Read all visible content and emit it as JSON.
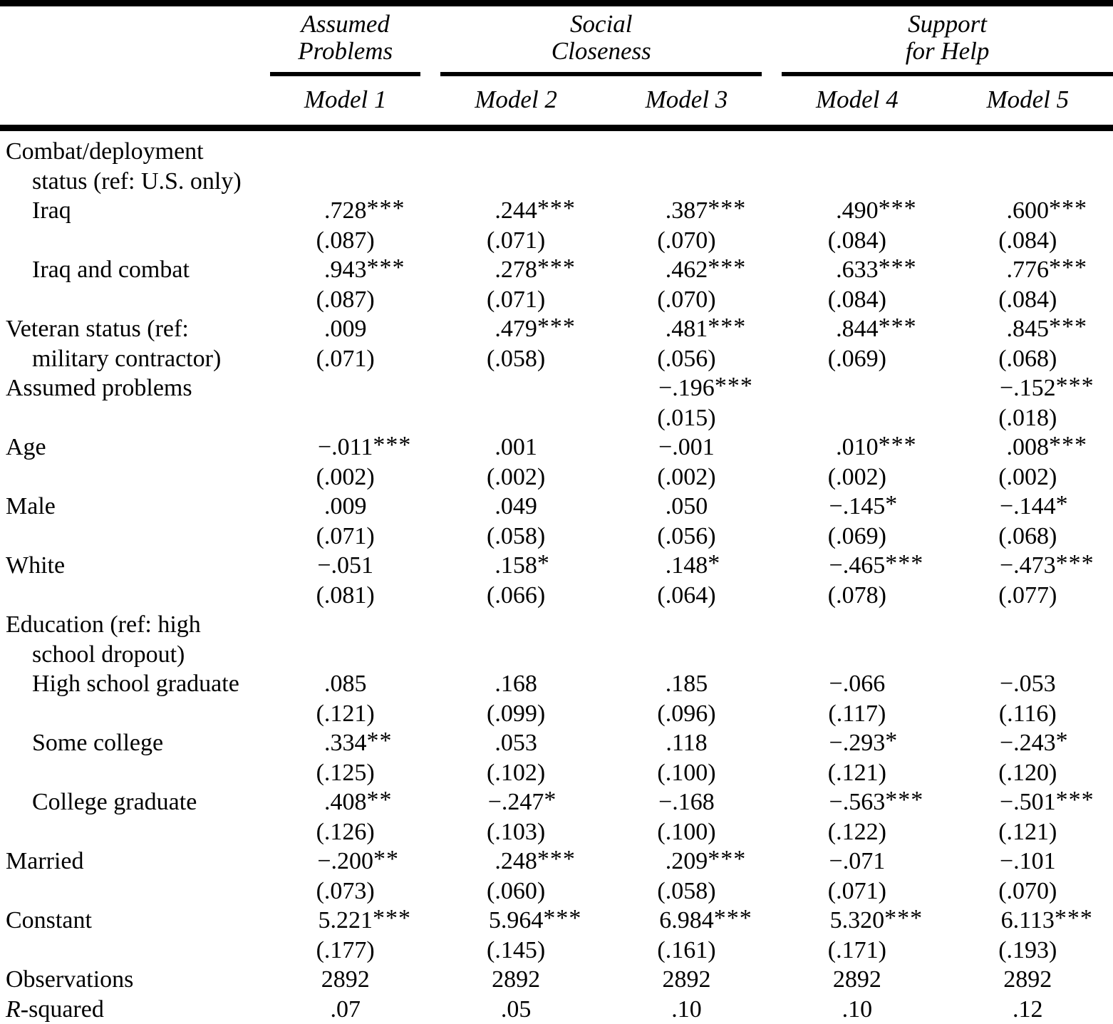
{
  "page": {
    "background_color": "#ffffff",
    "text_color": "#000000",
    "rule_color": "#000000"
  },
  "table": {
    "column_groups": [
      {
        "line1": "Assumed",
        "line2": "Problems",
        "models_spanned": 1
      },
      {
        "line1": "Social",
        "line2": "Closeness",
        "models_spanned": 2
      },
      {
        "line1": "Support",
        "line2": "for Help",
        "models_spanned": 2
      }
    ],
    "model_headers": [
      "Model 1",
      "Model 2",
      "Model 3",
      "Model 4",
      "Model 5"
    ],
    "rows": [
      {
        "label": "Combat/deployment",
        "indent": 0,
        "cells": [
          "",
          "",
          "",
          "",
          ""
        ]
      },
      {
        "label": "status (ref: U.S. only)",
        "indent": 1,
        "cells": [
          "",
          "",
          "",
          "",
          ""
        ]
      },
      {
        "label": "Iraq",
        "indent": 1,
        "cells": [
          ".728***",
          ".244***",
          ".387***",
          ".490***",
          ".600***"
        ]
      },
      {
        "label": "",
        "indent": 0,
        "cells": [
          "(.087)",
          "(.071)",
          "(.070)",
          "(.084)",
          "(.084)"
        ]
      },
      {
        "label": "Iraq and combat",
        "indent": 1,
        "cells": [
          ".943***",
          ".278***",
          ".462***",
          ".633***",
          ".776***"
        ]
      },
      {
        "label": "",
        "indent": 0,
        "cells": [
          "(.087)",
          "(.071)",
          "(.070)",
          "(.084)",
          "(.084)"
        ]
      },
      {
        "label": "Veteran status (ref:",
        "indent": 0,
        "cells": [
          ".009",
          ".479***",
          ".481***",
          ".844***",
          ".845***"
        ]
      },
      {
        "label": "military contractor)",
        "indent": 1,
        "cells": [
          "(.071)",
          "(.058)",
          "(.056)",
          "(.069)",
          "(.068)"
        ]
      },
      {
        "label": "Assumed problems",
        "indent": 0,
        "cells": [
          "",
          "",
          "−.196***",
          "",
          "−.152***"
        ]
      },
      {
        "label": "",
        "indent": 0,
        "cells": [
          "",
          "",
          "(.015)",
          "",
          "(.018)"
        ]
      },
      {
        "label": "Age",
        "indent": 0,
        "cells": [
          "−.011***",
          ".001",
          "−.001",
          ".010***",
          ".008***"
        ]
      },
      {
        "label": "",
        "indent": 0,
        "cells": [
          "(.002)",
          "(.002)",
          "(.002)",
          "(.002)",
          "(.002)"
        ]
      },
      {
        "label": "Male",
        "indent": 0,
        "cells": [
          ".009",
          ".049",
          ".050",
          "−.145*",
          "−.144*"
        ]
      },
      {
        "label": "",
        "indent": 0,
        "cells": [
          "(.071)",
          "(.058)",
          "(.056)",
          "(.069)",
          "(.068)"
        ]
      },
      {
        "label": "White",
        "indent": 0,
        "cells": [
          "−.051",
          ".158*",
          ".148*",
          "−.465***",
          "−.473***"
        ]
      },
      {
        "label": "",
        "indent": 0,
        "cells": [
          "(.081)",
          "(.066)",
          "(.064)",
          "(.078)",
          "(.077)"
        ]
      },
      {
        "label": "Education (ref: high",
        "indent": 0,
        "cells": [
          "",
          "",
          "",
          "",
          ""
        ]
      },
      {
        "label": "school dropout)",
        "indent": 1,
        "cells": [
          "",
          "",
          "",
          "",
          ""
        ]
      },
      {
        "label": "High school graduate",
        "indent": 1,
        "cells": [
          ".085",
          ".168",
          ".185",
          "−.066",
          "−.053"
        ]
      },
      {
        "label": "",
        "indent": 0,
        "cells": [
          "(.121)",
          "(.099)",
          "(.096)",
          "(.117)",
          "(.116)"
        ]
      },
      {
        "label": "Some college",
        "indent": 1,
        "cells": [
          ".334**",
          ".053",
          ".118",
          "−.293*",
          "−.243*"
        ]
      },
      {
        "label": "",
        "indent": 0,
        "cells": [
          "(.125)",
          "(.102)",
          "(.100)",
          "(.121)",
          "(.120)"
        ]
      },
      {
        "label": "College graduate",
        "indent": 1,
        "cells": [
          ".408**",
          "−.247*",
          "−.168",
          "−.563***",
          "−.501***"
        ]
      },
      {
        "label": "",
        "indent": 0,
        "cells": [
          "(.126)",
          "(.103)",
          "(.100)",
          "(.122)",
          "(.121)"
        ]
      },
      {
        "label": "Married",
        "indent": 0,
        "cells": [
          "−.200**",
          ".248***",
          ".209***",
          "−.071",
          "−.101"
        ]
      },
      {
        "label": "",
        "indent": 0,
        "cells": [
          "(.073)",
          "(.060)",
          "(.058)",
          "(.071)",
          "(.070)"
        ]
      },
      {
        "label": "Constant",
        "indent": 0,
        "cells": [
          "5.221***",
          "5.964***",
          "6.984***",
          "5.320***",
          "6.113***"
        ]
      },
      {
        "label": "",
        "indent": 0,
        "cells": [
          "(.177)",
          "(.145)",
          "(.161)",
          "(.171)",
          "(.193)"
        ]
      },
      {
        "label": "Observations",
        "indent": 0,
        "cells": [
          "2892",
          "2892",
          "2892",
          "2892",
          "2892"
        ]
      },
      {
        "label": "R-squared",
        "indent": 0,
        "italic_prefix": 1,
        "cells": [
          ".07",
          ".05",
          ".10",
          ".10",
          ".12"
        ]
      }
    ]
  }
}
